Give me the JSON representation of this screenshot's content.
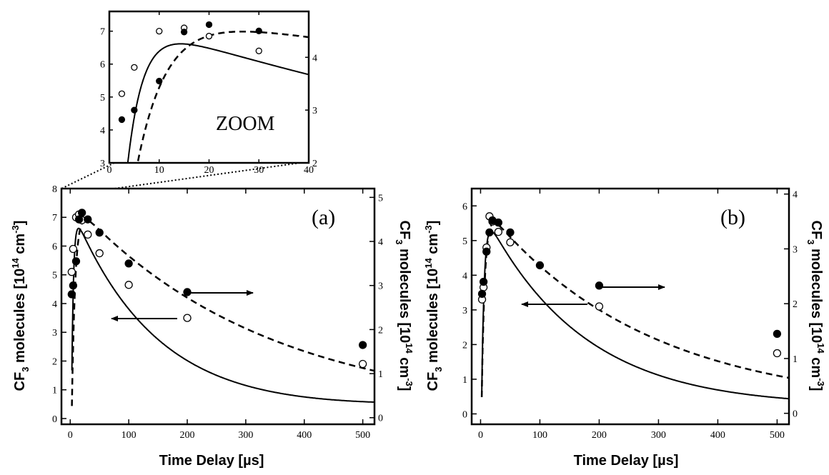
{
  "chart_data": [
    {
      "panel": "a",
      "type": "scatter",
      "annotation": "(a)",
      "xlabel": "Time Delay [µs]",
      "ylabel_left": "CF3 molecules [10^14 cm^-3]",
      "ylabel_right": "CF3 molecules [10^14 cm^-3]",
      "xlim": [
        -15,
        520
      ],
      "ylim_left": [
        -0.2,
        8
      ],
      "ylim_right": [
        -0.15,
        5.2
      ],
      "xticks": [
        0,
        100,
        200,
        300,
        400,
        500
      ],
      "yticks_left": [
        0,
        1,
        2,
        3,
        4,
        5,
        6,
        7,
        8
      ],
      "yticks_right": [
        0,
        1,
        2,
        3,
        4,
        5
      ],
      "series": [
        {
          "marker": "open-circle",
          "axis": "left",
          "line": "solid",
          "x": [
            2.5,
            5,
            10,
            15,
            20,
            30,
            50,
            100,
            200,
            500
          ],
          "y": [
            5.1,
            5.9,
            7.0,
            7.1,
            6.9,
            6.4,
            5.75,
            4.65,
            3.5,
            1.9
          ]
        },
        {
          "marker": "filled-circle",
          "axis": "right",
          "line": "dashed",
          "x": [
            2.5,
            5,
            10,
            15,
            20,
            30,
            50,
            100,
            200,
            500
          ],
          "y": [
            2.8,
            3.0,
            3.55,
            4.5,
            4.65,
            4.5,
            4.2,
            3.5,
            2.85,
            1.65
          ]
        }
      ],
      "arrows": [
        {
          "direction": "right",
          "points_to": "right axis"
        },
        {
          "direction": "left",
          "points_to": "left axis"
        }
      ]
    },
    {
      "panel": "b",
      "type": "scatter",
      "annotation": "(b)",
      "xlabel": "Time Delay [µs]",
      "ylabel_left": "CF3 molecules [10^14 cm^-3]",
      "ylabel_right": "CF3 molecules [10^14 cm^-3]",
      "xlim": [
        -15,
        520
      ],
      "ylim_left": [
        -0.3,
        6.5
      ],
      "ylim_right": [
        -0.2,
        4.1
      ],
      "xticks": [
        0,
        100,
        200,
        300,
        400,
        500
      ],
      "yticks_left": [
        0,
        1,
        2,
        3,
        4,
        5,
        6
      ],
      "yticks_right": [
        0,
        1,
        2,
        3,
        4
      ],
      "series": [
        {
          "marker": "open-circle",
          "axis": "left",
          "line": "solid",
          "x": [
            2.5,
            5,
            10,
            15,
            20,
            30,
            50,
            200,
            500
          ],
          "y": [
            3.3,
            3.65,
            4.8,
            5.7,
            5.55,
            5.25,
            4.95,
            3.1,
            1.75
          ]
        },
        {
          "marker": "filled-circle",
          "axis": "right",
          "line": "dashed",
          "x": [
            2.5,
            5,
            10,
            15,
            20,
            30,
            50,
            100,
            200,
            500
          ],
          "y": [
            2.18,
            2.4,
            2.95,
            3.3,
            3.52,
            3.48,
            3.3,
            2.7,
            2.33,
            1.45
          ]
        }
      ],
      "arrows": [
        {
          "direction": "right",
          "points_to": "right axis"
        },
        {
          "direction": "left",
          "points_to": "left axis"
        }
      ]
    },
    {
      "panel": "zoom",
      "type": "scatter",
      "annotation": "ZOOM",
      "xlim": [
        0,
        40
      ],
      "ylim_left": [
        3,
        7.6
      ],
      "ylim_right": [
        2,
        4.87
      ],
      "xticks": [
        0,
        10,
        20,
        30,
        40
      ],
      "yticks_left": [
        3,
        4,
        5,
        6,
        7
      ],
      "yticks_right": [
        2,
        3,
        4
      ],
      "series": [
        {
          "marker": "open-circle",
          "axis": "left",
          "line": "solid",
          "x": [
            2.5,
            5,
            10,
            15,
            20,
            30
          ],
          "y": [
            5.1,
            5.9,
            7.0,
            7.1,
            6.85,
            6.4
          ]
        },
        {
          "marker": "filled-circle",
          "axis": "right",
          "line": "dashed",
          "x": [
            2.5,
            5,
            10,
            15,
            20,
            30
          ],
          "y": [
            2.82,
            3.0,
            3.55,
            4.48,
            4.62,
            4.5
          ]
        }
      ]
    }
  ]
}
